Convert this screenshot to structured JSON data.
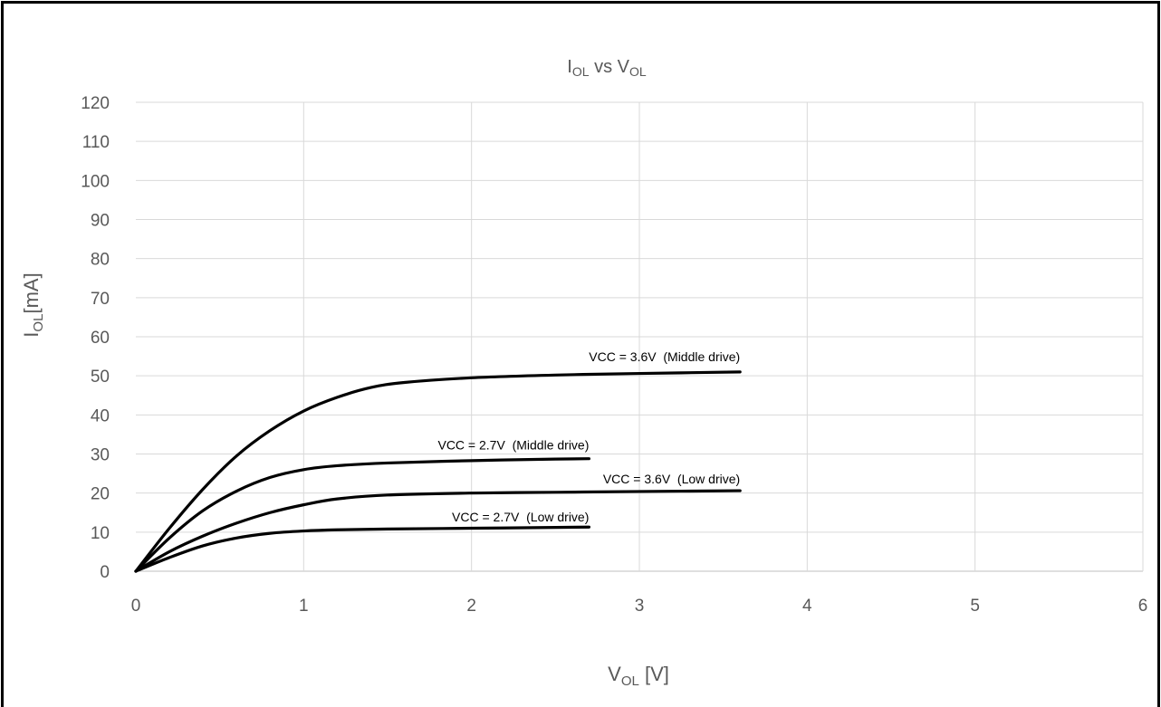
{
  "chart_data": {
    "type": "line",
    "title": {
      "main": "I",
      "sub1": "OL",
      "mid": " vs V",
      "sub2": "OL"
    },
    "xlabel": {
      "main": "V",
      "sub": "OL",
      "rest": " [V]"
    },
    "ylabel": {
      "main": "I",
      "sub": "OL",
      "rest": "[mA]"
    },
    "xlim": [
      0,
      6
    ],
    "ylim": [
      0,
      120
    ],
    "xticks": [
      "0",
      "1",
      "2",
      "3",
      "4",
      "5",
      "6"
    ],
    "yticks": [
      "0",
      "10",
      "20",
      "30",
      "40",
      "50",
      "60",
      "70",
      "80",
      "90",
      "100",
      "110",
      "120"
    ],
    "grid": true,
    "line_color": "#000000",
    "series": [
      {
        "name": "VCC = 3.6V  (Middle drive)",
        "x": [
          0,
          0.2,
          0.4,
          0.6,
          0.8,
          1.0,
          1.2,
          1.4,
          1.6,
          2.0,
          2.5,
          3.0,
          3.6
        ],
        "y": [
          0,
          11,
          21,
          29.5,
          36,
          41,
          44.5,
          47,
          48.3,
          49.5,
          50.2,
          50.6,
          51
        ]
      },
      {
        "name": "VCC = 2.7V  (Middle drive)",
        "x": [
          0,
          0.2,
          0.4,
          0.6,
          0.8,
          1.0,
          1.2,
          1.5,
          2.0,
          2.5,
          2.7
        ],
        "y": [
          0,
          8.5,
          15.5,
          20.5,
          24,
          26,
          27,
          27.7,
          28.3,
          28.7,
          28.8
        ]
      },
      {
        "name": "VCC = 3.6V  (Low drive)",
        "x": [
          0,
          0.2,
          0.4,
          0.6,
          0.8,
          1.0,
          1.2,
          1.5,
          2.0,
          2.5,
          3.0,
          3.6
        ],
        "y": [
          0,
          5,
          9,
          12.3,
          15,
          17,
          18.5,
          19.5,
          20,
          20.2,
          20.4,
          20.6
        ]
      },
      {
        "name": "VCC = 2.7V  (Low drive)",
        "x": [
          0,
          0.2,
          0.4,
          0.6,
          0.8,
          1.0,
          1.2,
          1.5,
          2.0,
          2.5,
          2.7
        ],
        "y": [
          0,
          3.5,
          6.5,
          8.5,
          9.7,
          10.3,
          10.6,
          10.8,
          11,
          11.2,
          11.3
        ]
      }
    ]
  }
}
